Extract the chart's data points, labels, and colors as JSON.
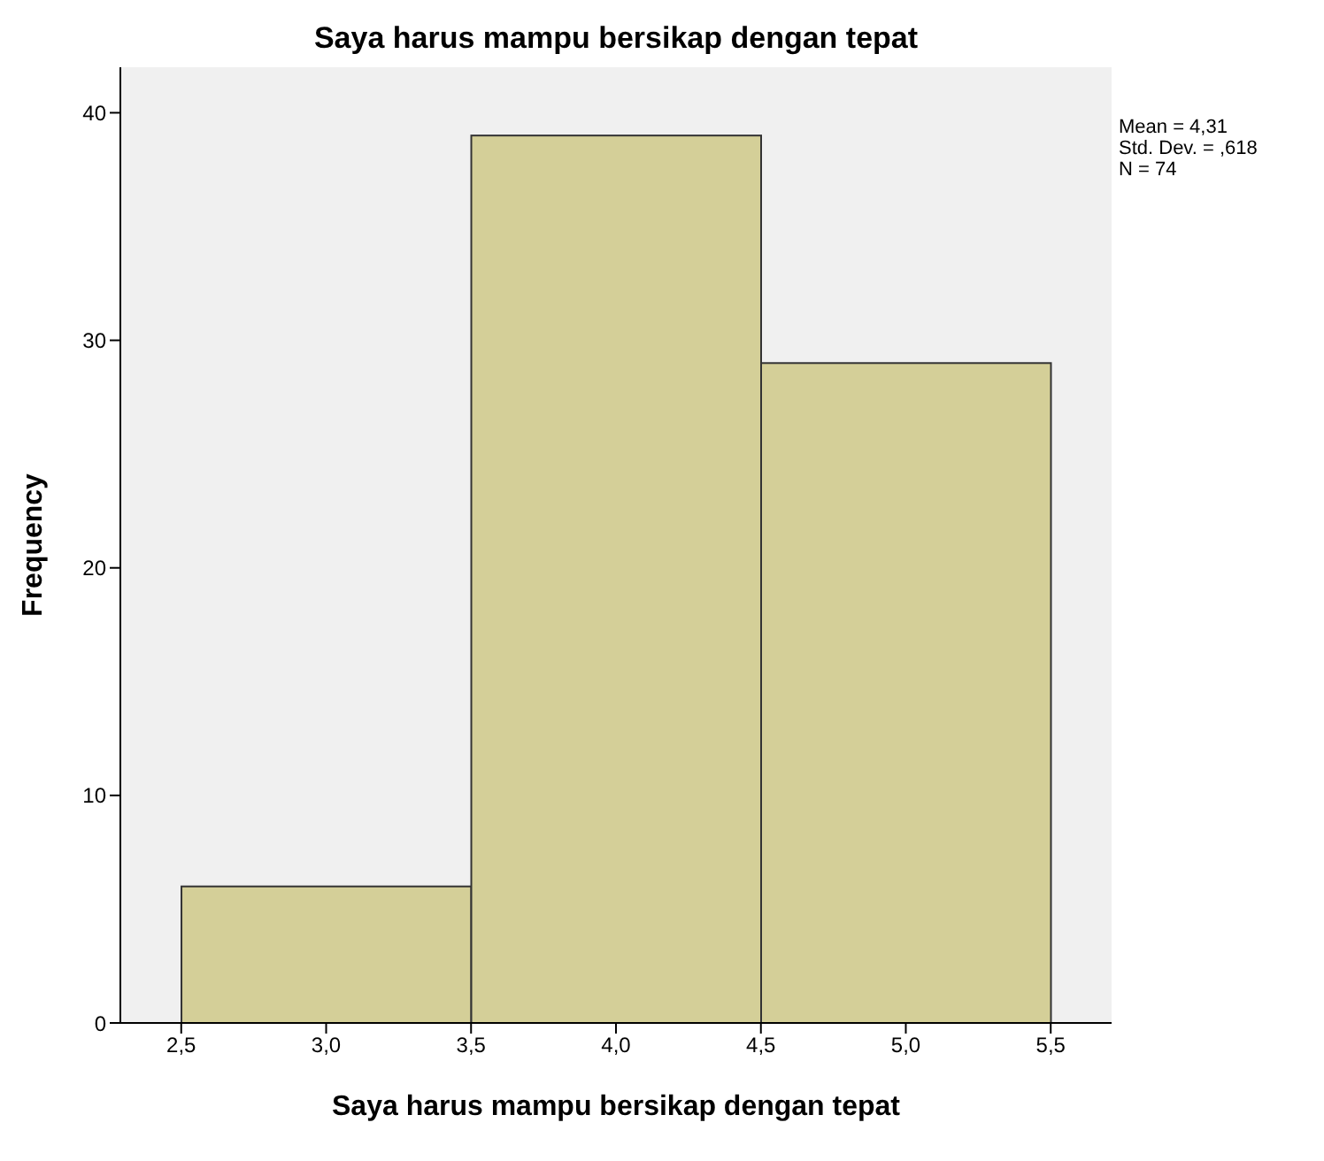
{
  "chart_data": {
    "type": "histogram",
    "title": "Saya harus mampu bersikap dengan tepat",
    "xlabel": "Saya harus mampu bersikap dengan tepat",
    "ylabel": "Frequency",
    "bins": [
      2.5,
      3.5,
      4.5,
      5.5
    ],
    "values": [
      6,
      39,
      29
    ],
    "color": "#d4cf98",
    "xlim": [
      2.29,
      5.71
    ],
    "xticks": [
      {
        "value": 2.5,
        "label": "2,5"
      },
      {
        "value": 3.0,
        "label": "3,0"
      },
      {
        "value": 3.5,
        "label": "3,5"
      },
      {
        "value": 4.0,
        "label": "4,0"
      },
      {
        "value": 4.5,
        "label": "4,5"
      },
      {
        "value": 5.0,
        "label": "5,0"
      },
      {
        "value": 5.5,
        "label": "5,5"
      }
    ],
    "ylim": [
      0,
      42
    ],
    "yticks": [
      0,
      10,
      20,
      30,
      40
    ],
    "grid": false,
    "annotations": [
      "Mean = 4,31",
      "Std. Dev. = ,618",
      "N = 74"
    ]
  }
}
